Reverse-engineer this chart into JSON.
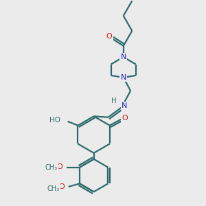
{
  "bg_color": "#ebebeb",
  "bond_color": "#2d6b6b",
  "N_color": "#1a1acc",
  "O_color": "#cc1a1a",
  "line_width": 1.6,
  "figsize": [
    3.0,
    3.0
  ],
  "dpi": 100,
  "xlim": [
    0,
    10
  ],
  "ylim": [
    0,
    10
  ]
}
